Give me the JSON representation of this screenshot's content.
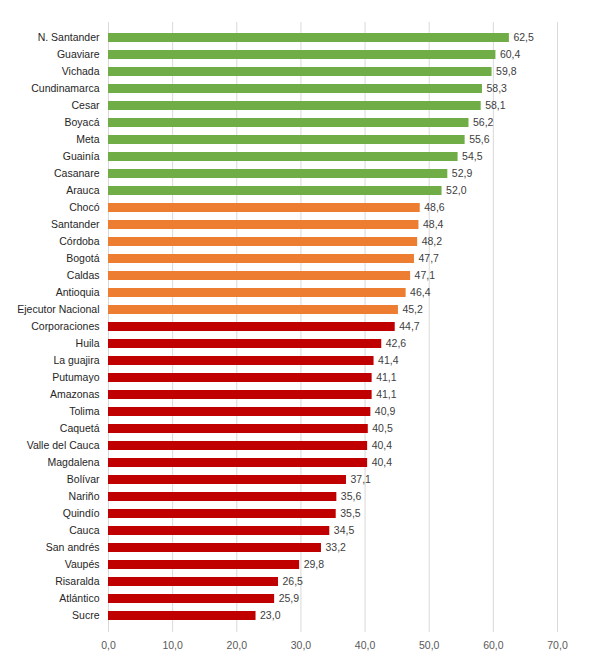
{
  "chart_data": {
    "type": "bar",
    "orientation": "horizontal",
    "categories": [
      "N. Santander",
      "Guaviare",
      "Vichada",
      "Cundinamarca",
      "Cesar",
      "Boyacá",
      "Meta",
      "Guainía",
      "Casanare",
      "Arauca",
      "Chocó",
      "Santander",
      "Córdoba",
      "Bogotá",
      "Caldas",
      "Antioquia",
      "Ejecutor Nacional",
      "Corporaciones",
      "Huila",
      "La guajira",
      "Putumayo",
      "Amazonas",
      "Tolima",
      "Caquetá",
      "Valle del Cauca",
      "Magdalena",
      "Bolívar",
      "Nariño",
      "Quindío",
      "Cauca",
      "San andrés",
      "Vaupés",
      "Risaralda",
      "Atlántico",
      "Sucre"
    ],
    "values": [
      62.5,
      60.4,
      59.8,
      58.3,
      58.1,
      56.2,
      55.6,
      54.5,
      52.9,
      52.0,
      48.6,
      48.4,
      48.2,
      47.7,
      47.1,
      46.4,
      45.2,
      44.7,
      42.6,
      41.4,
      41.1,
      41.1,
      40.9,
      40.5,
      40.4,
      40.4,
      37.1,
      35.6,
      35.5,
      34.5,
      33.2,
      29.8,
      26.5,
      25.9,
      23.0
    ],
    "value_labels": [
      "62,5",
      "60,4",
      "59,8",
      "58,3",
      "58,1",
      "56,2",
      "55,6",
      "54,5",
      "52,9",
      "52,0",
      "48,6",
      "48,4",
      "48,2",
      "47,7",
      "47,1",
      "46,4",
      "45,2",
      "44,7",
      "42,6",
      "41,4",
      "41,1",
      "41,1",
      "40,9",
      "40,5",
      "40,4",
      "40,4",
      "37,1",
      "35,6",
      "35,5",
      "34,5",
      "33,2",
      "29,8",
      "26,5",
      "25,9",
      "23,0"
    ],
    "colors": [
      "#70ad47",
      "#70ad47",
      "#70ad47",
      "#70ad47",
      "#70ad47",
      "#70ad47",
      "#70ad47",
      "#70ad47",
      "#70ad47",
      "#70ad47",
      "#ed7d31",
      "#ed7d31",
      "#ed7d31",
      "#ed7d31",
      "#ed7d31",
      "#ed7d31",
      "#ed7d31",
      "#c00000",
      "#c00000",
      "#c00000",
      "#c00000",
      "#c00000",
      "#c00000",
      "#c00000",
      "#c00000",
      "#c00000",
      "#c00000",
      "#c00000",
      "#c00000",
      "#c00000",
      "#c00000",
      "#c00000",
      "#c00000",
      "#c00000",
      "#c00000"
    ],
    "xlim": [
      0,
      70
    ],
    "xticks": [
      {
        "value": 0,
        "label": "0,0"
      },
      {
        "value": 10,
        "label": "10,0"
      },
      {
        "value": 20,
        "label": "20,0"
      },
      {
        "value": 30,
        "label": "30,0"
      },
      {
        "value": 40,
        "label": "40,0"
      },
      {
        "value": 50,
        "label": "50,0"
      },
      {
        "value": 60,
        "label": "60,0"
      },
      {
        "value": 70,
        "label": "70,0"
      }
    ],
    "grid": true,
    "data_labels": true
  }
}
